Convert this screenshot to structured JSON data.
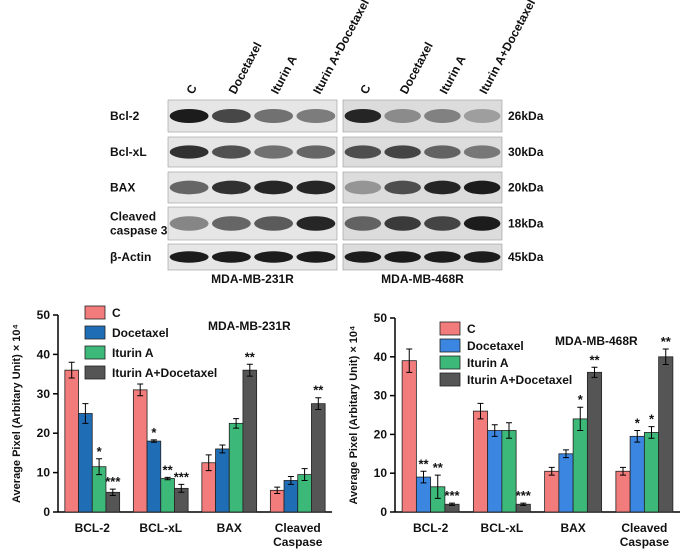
{
  "blot": {
    "lanes": [
      "C",
      "Docetaxel",
      "Iturin A",
      "Iturin A+Docetaxel"
    ],
    "rows": [
      "Bcl-2",
      "Bcl-xL",
      "BAX",
      "Cleaved caspase 3",
      "β-Actin"
    ],
    "sizes": [
      "26kDa",
      "30kDa",
      "20kDa",
      "18kDa",
      "45kDa"
    ],
    "panels": [
      "MDA-MB-231R",
      "MDA-MB-468R"
    ]
  },
  "chart_data": [
    {
      "type": "bar",
      "title": "MDA-MB-231R",
      "y_label": "Average Pixel (Arbitary Unit) × 10⁴",
      "categories": [
        "BCL-2",
        "BCL-xL",
        "BAX",
        "Cleaved Caspase"
      ],
      "ylim": [
        0,
        50
      ],
      "yticks": [
        0,
        10,
        20,
        30,
        40,
        50
      ],
      "series": [
        {
          "name": "C",
          "color": "#f27b7b",
          "values": [
            36,
            31,
            12.5,
            5.5
          ],
          "errors": [
            2,
            1.5,
            2,
            0.8
          ],
          "significance": [
            null,
            null,
            null,
            null
          ]
        },
        {
          "name": "Docetaxel",
          "color": "#1f6db5",
          "values": [
            25,
            18,
            16,
            8
          ],
          "errors": [
            2.5,
            0.3,
            1,
            1
          ],
          "significance": [
            null,
            "*",
            null,
            null
          ]
        },
        {
          "name": "Iturin A",
          "color": "#3cb878",
          "values": [
            11.5,
            8.5,
            22.5,
            9.5
          ],
          "errors": [
            2,
            0.3,
            1.2,
            1.5
          ],
          "significance": [
            "*",
            "**",
            null,
            null
          ]
        },
        {
          "name": "Iturin A+Docetaxel",
          "color": "#555555",
          "values": [
            5,
            6,
            36,
            27.5
          ],
          "errors": [
            0.8,
            1,
            1.5,
            1.5
          ],
          "significance": [
            "***",
            "***",
            "**",
            "**"
          ]
        }
      ]
    },
    {
      "type": "bar",
      "title": "MDA-MB-468R",
      "y_label": "Average Pixel (Arbitary Unit) × 10⁴",
      "categories": [
        "BCL-2",
        "BCL-xL",
        "BAX",
        "Cleaved Caspase"
      ],
      "ylim": [
        0,
        50
      ],
      "yticks": [
        0,
        10,
        20,
        30,
        40,
        50
      ],
      "series": [
        {
          "name": "C",
          "color": "#f27b7b",
          "values": [
            39,
            26,
            10.5,
            10.5
          ],
          "errors": [
            3,
            2,
            1,
            1
          ],
          "significance": [
            null,
            null,
            null,
            null
          ]
        },
        {
          "name": "Docetaxel",
          "color": "#3a86e0",
          "values": [
            9,
            21,
            15,
            19.5
          ],
          "errors": [
            1.5,
            1.5,
            1,
            1.5
          ],
          "significance": [
            "**",
            null,
            null,
            "*"
          ]
        },
        {
          "name": "Iturin A",
          "color": "#3cb878",
          "values": [
            6.5,
            21,
            24,
            20.5
          ],
          "errors": [
            3,
            2,
            3,
            1.5
          ],
          "significance": [
            "**",
            null,
            "*",
            "*"
          ]
        },
        {
          "name": "Iturin A+Docetaxel",
          "color": "#555555",
          "values": [
            2,
            2,
            36,
            40
          ],
          "errors": [
            0.3,
            0.3,
            1.3,
            2
          ],
          "significance": [
            "***",
            "***",
            "**",
            "**"
          ]
        }
      ]
    }
  ]
}
